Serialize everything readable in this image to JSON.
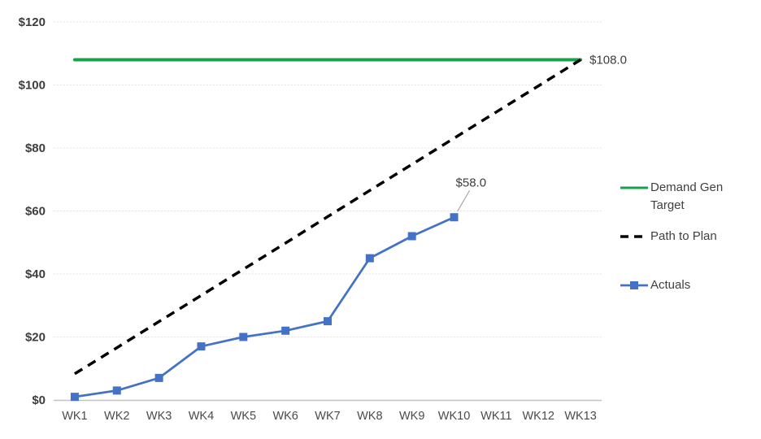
{
  "chart_data": {
    "type": "line",
    "categories": [
      "WK1",
      "WK2",
      "WK3",
      "WK4",
      "WK5",
      "WK6",
      "WK7",
      "WK8",
      "WK9",
      "WK10",
      "WK11",
      "WK12",
      "WK13"
    ],
    "series": [
      {
        "name": "Demand Gen Target",
        "color": "#18A04F",
        "line_style": "solid",
        "line_width": 4,
        "marker": "none",
        "values": [
          108,
          108,
          108,
          108,
          108,
          108,
          108,
          108,
          108,
          108,
          108,
          108,
          108
        ]
      },
      {
        "name": "Path to Plan",
        "color": "#000000",
        "line_style": "dashed",
        "line_width": 3.5,
        "marker": "none",
        "values": [
          8.3,
          16.6,
          24.9,
          33.2,
          41.5,
          49.8,
          58.2,
          66.5,
          74.8,
          83.1,
          91.4,
          99.7,
          108
        ]
      },
      {
        "name": "Actuals",
        "color": "#4472C4",
        "line_style": "solid",
        "line_width": 2.75,
        "marker": "square",
        "values": [
          1,
          3,
          7,
          17,
          20,
          22,
          25,
          45,
          52,
          58,
          null,
          null,
          null
        ]
      }
    ],
    "ylim": [
      0,
      120
    ],
    "ytick_values": [
      0,
      20,
      40,
      60,
      80,
      100,
      120
    ],
    "ytick_labels": [
      "$0",
      "$20",
      "$40",
      "$60",
      "$80",
      "$100",
      "$120"
    ],
    "grid": "horizontal-dotted",
    "legend_position": "right",
    "annotations": [
      {
        "text": "$108.0",
        "series": "Demand Gen Target",
        "category": "WK13",
        "value": 108,
        "placement": "end-right"
      },
      {
        "text": "$58.0",
        "series": "Actuals",
        "category": "WK10",
        "value": 58,
        "placement": "above-with-leader"
      }
    ],
    "colors": {
      "gridline": "#d9d9d9",
      "axis_line": "#c3c3c3",
      "tick_label": "#3d3d3d",
      "leader_line": "#a6a6a6"
    }
  }
}
